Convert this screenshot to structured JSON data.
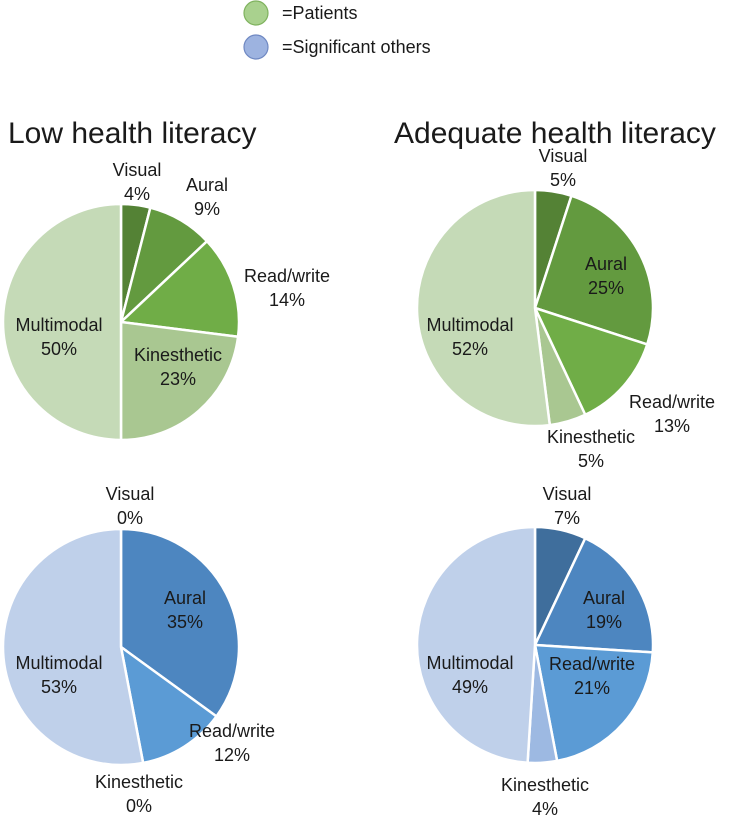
{
  "legend": [
    {
      "label": "=Patients",
      "color": "#a9d18e",
      "stroke": "#7fb25e"
    },
    {
      "label": "=Significant others",
      "color": "#9db3e0",
      "stroke": "#6f88c2"
    }
  ],
  "titles": {
    "left": "Low health literacy",
    "right": "Adequate health literacy"
  },
  "chart_data": [
    {
      "type": "pie",
      "group": "Low health literacy",
      "population": "Patients",
      "slices": [
        {
          "label": "Visual",
          "value": 4,
          "pct": "4%",
          "color": "#548235"
        },
        {
          "label": "Aural",
          "value": 9,
          "pct": "9%",
          "color": "#639a3f"
        },
        {
          "label": "Read/write",
          "value": 14,
          "pct": "14%",
          "color": "#70ad47"
        },
        {
          "label": "Kinesthetic",
          "value": 23,
          "pct": "23%",
          "color": "#a9c791"
        },
        {
          "label": "Multimodal",
          "value": 50,
          "pct": "50%",
          "color": "#c5dab7"
        }
      ]
    },
    {
      "type": "pie",
      "group": "Adequate health literacy",
      "population": "Patients",
      "slices": [
        {
          "label": "Visual",
          "value": 5,
          "pct": "5%",
          "color": "#548235"
        },
        {
          "label": "Aural",
          "value": 25,
          "pct": "25%",
          "color": "#639a3f"
        },
        {
          "label": "Read/write",
          "value": 13,
          "pct": "13%",
          "color": "#70ad47"
        },
        {
          "label": "Kinesthetic",
          "value": 5,
          "pct": "5%",
          "color": "#a9c791"
        },
        {
          "label": "Multimodal",
          "value": 52,
          "pct": "52%",
          "color": "#c5dab7"
        }
      ]
    },
    {
      "type": "pie",
      "group": "Low health literacy",
      "population": "Significant others",
      "slices": [
        {
          "label": "Visual",
          "value": 0,
          "pct": "0%",
          "color": "#3f6e9c"
        },
        {
          "label": "Aural",
          "value": 35,
          "pct": "35%",
          "color": "#4d86c0"
        },
        {
          "label": "Read/write",
          "value": 12,
          "pct": "12%",
          "color": "#5b9bd5"
        },
        {
          "label": "Kinesthetic",
          "value": 0,
          "pct": "0%",
          "color": "#9db9e2"
        },
        {
          "label": "Multimodal",
          "value": 53,
          "pct": "53%",
          "color": "#bfd0ea"
        }
      ]
    },
    {
      "type": "pie",
      "group": "Adequate health literacy",
      "population": "Significant others",
      "slices": [
        {
          "label": "Visual",
          "value": 7,
          "pct": "7%",
          "color": "#3f6e9c"
        },
        {
          "label": "Aural",
          "value": 19,
          "pct": "19%",
          "color": "#4d86c0"
        },
        {
          "label": "Read/write",
          "value": 21,
          "pct": "21%",
          "color": "#5b9bd5"
        },
        {
          "label": "Kinesthetic",
          "value": 4,
          "pct": "4%",
          "color": "#9db9e2"
        },
        {
          "label": "Multimodal",
          "value": 49,
          "pct": "49%",
          "color": "#bfd0ea"
        }
      ]
    }
  ]
}
